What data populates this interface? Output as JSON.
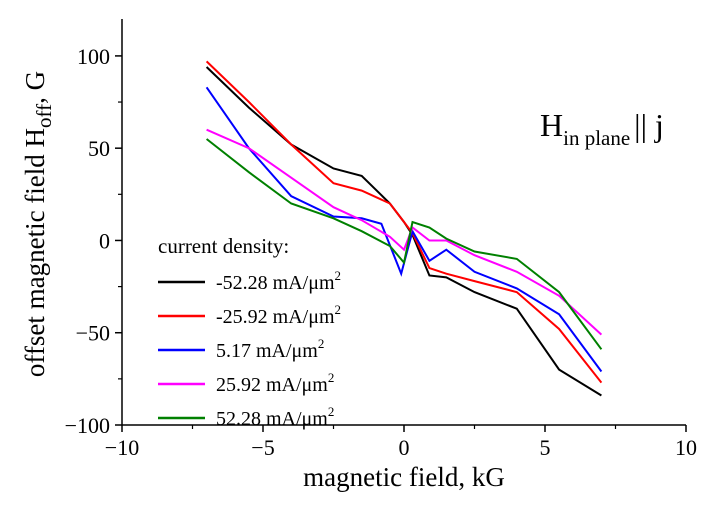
{
  "chart_data": {
    "type": "line",
    "xlabel": "magnetic field, kG",
    "ylabel_main": "offset magnetic field H",
    "ylabel_sub": "off",
    "ylabel_tail": ", G",
    "xlim": [
      -10,
      10
    ],
    "ylim": [
      -100,
      120
    ],
    "x_ticks": [
      -10,
      -5,
      0,
      5,
      10
    ],
    "x_tick_labels": [
      "−10",
      "−5",
      "0",
      "5",
      "10"
    ],
    "y_ticks": [
      -100,
      -50,
      0,
      50,
      100
    ],
    "y_tick_labels": [
      "−100",
      "−50",
      "0",
      "50",
      "100"
    ],
    "grid": false,
    "legend": {
      "title": "current density:",
      "placement": "bottom-left",
      "units_base": "mA/μm",
      "units_exp": "2"
    },
    "annotation": {
      "main": "H",
      "sub": "in plane",
      "tail": "|| j"
    },
    "series": [
      {
        "name": "-52.28",
        "color": "#000000",
        "points": [
          [
            -7,
            94
          ],
          [
            -5.5,
            72
          ],
          [
            -4,
            52
          ],
          [
            -2.5,
            39
          ],
          [
            -1.5,
            35
          ],
          [
            -0.5,
            20
          ],
          [
            0,
            10
          ],
          [
            0.3,
            3
          ],
          [
            0.9,
            -19
          ],
          [
            1.5,
            -20
          ],
          [
            2.5,
            -28
          ],
          [
            4,
            -37
          ],
          [
            5.5,
            -70
          ],
          [
            7,
            -84
          ]
        ]
      },
      {
        "name": "-25.92",
        "color": "#ff0000",
        "points": [
          [
            -7,
            97
          ],
          [
            -5.5,
            75
          ],
          [
            -4,
            52
          ],
          [
            -2.5,
            31
          ],
          [
            -1.5,
            27
          ],
          [
            -0.5,
            20
          ],
          [
            0,
            10
          ],
          [
            0.3,
            4
          ],
          [
            0.9,
            -15
          ],
          [
            1.5,
            -18
          ],
          [
            2.5,
            -22
          ],
          [
            4,
            -28
          ],
          [
            5.5,
            -48
          ],
          [
            7,
            -77
          ]
        ]
      },
      {
        "name": "5.17",
        "color": "#0000ff",
        "points": [
          [
            -7,
            83
          ],
          [
            -5.5,
            50
          ],
          [
            -4,
            24
          ],
          [
            -2.5,
            13
          ],
          [
            -1.5,
            12
          ],
          [
            -0.8,
            9
          ],
          [
            -0.1,
            -18
          ],
          [
            0.3,
            5
          ],
          [
            0.9,
            -11
          ],
          [
            1.5,
            -5
          ],
          [
            2.5,
            -17
          ],
          [
            4,
            -26
          ],
          [
            5.5,
            -40
          ],
          [
            7,
            -71
          ]
        ]
      },
      {
        "name": "25.92",
        "color": "#ff00ff",
        "points": [
          [
            -7,
            60
          ],
          [
            -5.5,
            50
          ],
          [
            -4,
            34
          ],
          [
            -2.5,
            18
          ],
          [
            -1.5,
            11
          ],
          [
            -0.5,
            2
          ],
          [
            0,
            -5
          ],
          [
            0.3,
            7
          ],
          [
            0.9,
            0
          ],
          [
            1.5,
            0
          ],
          [
            2.5,
            -8
          ],
          [
            4,
            -17
          ],
          [
            5.5,
            -30
          ],
          [
            7,
            -51
          ]
        ]
      },
      {
        "name": "52.28",
        "color": "#008000",
        "points": [
          [
            -7,
            55
          ],
          [
            -5.5,
            37
          ],
          [
            -4,
            20
          ],
          [
            -2.5,
            12
          ],
          [
            -1.5,
            5
          ],
          [
            -0.5,
            -3
          ],
          [
            0,
            -12
          ],
          [
            0.3,
            10
          ],
          [
            0.9,
            7
          ],
          [
            1.5,
            1
          ],
          [
            2.5,
            -6
          ],
          [
            4,
            -10
          ],
          [
            5.5,
            -28
          ],
          [
            7,
            -59
          ]
        ]
      }
    ]
  }
}
